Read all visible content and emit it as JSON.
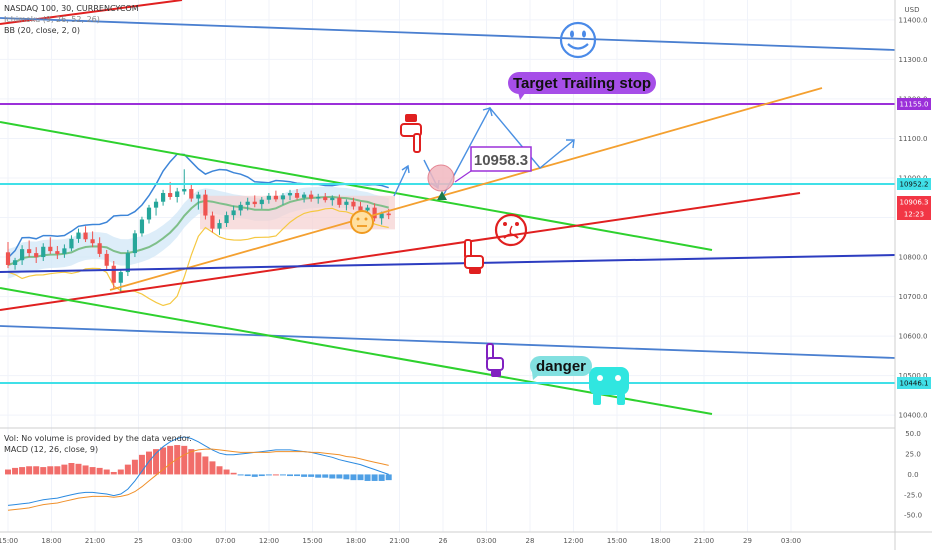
{
  "header": {
    "symbol_line": "NASDAQ 100, 30, CURRENCYCOM",
    "ind1": "Ichimoku (9, 26, 52, 26)",
    "ind2": "BB (20, close, 2, 0)",
    "currency": "USD"
  },
  "lower_panel": {
    "vol_note": "Vol: No volume is provided by the data vendor.",
    "macd_label": "MACD (12, 26, close, 9)"
  },
  "annotations": {
    "target": "Target Trailing stop",
    "price_box": "10958.3",
    "danger": "danger"
  },
  "price_tags": [
    {
      "value": "11155.0",
      "color": "#9b30d9"
    },
    {
      "value": "10952.2",
      "color": "#40e0e8"
    },
    {
      "value": "10906.3",
      "color": "#f23645"
    },
    {
      "value": "12:23",
      "color": "#f23645"
    },
    {
      "value": "10446.1",
      "color": "#40e0e8"
    }
  ],
  "icons": [
    "smiley-face-icon",
    "sad-face-icon",
    "neutral-face-icon",
    "robot-face-icon",
    "hand-pointing-down-icon",
    "hand-pointing-up-icon"
  ],
  "chart_data": {
    "type": "candlestick",
    "title": "",
    "y_axis": {
      "ticks": [
        "11400.0",
        "11300.0",
        "11200.0",
        "11100.0",
        "11000.0",
        "10900.0",
        "10800.0",
        "10700.0",
        "10600.0",
        "10500.0",
        "10400.0"
      ],
      "range": [
        10360,
        11430
      ]
    },
    "x_axis": {
      "ticks": [
        "15:00",
        "18:00",
        "21:00",
        "25",
        "03:00",
        "07:00",
        "12:00",
        "15:00",
        "18:00",
        "21:00",
        "26",
        "03:00",
        "28",
        "12:00",
        "15:00",
        "18:00",
        "21:00",
        "29",
        "03:00"
      ]
    },
    "macd_axis": {
      "ticks": [
        "50.0",
        "25.0",
        "0.0",
        "-25.0",
        "-50.0"
      ],
      "range": [
        -62,
        52
      ]
    },
    "candles": [
      [
        10812,
        10838,
        10772,
        10780
      ],
      [
        10780,
        10798,
        10768,
        10792
      ],
      [
        10792,
        10830,
        10780,
        10820
      ],
      [
        10820,
        10842,
        10800,
        10810
      ],
      [
        10810,
        10825,
        10785,
        10800
      ],
      [
        10800,
        10835,
        10790,
        10826
      ],
      [
        10826,
        10850,
        10808,
        10815
      ],
      [
        10815,
        10828,
        10795,
        10808
      ],
      [
        10808,
        10832,
        10798,
        10822
      ],
      [
        10822,
        10855,
        10815,
        10846
      ],
      [
        10846,
        10872,
        10836,
        10862
      ],
      [
        10862,
        10878,
        10838,
        10845
      ],
      [
        10845,
        10865,
        10825,
        10835
      ],
      [
        10835,
        10850,
        10800,
        10808
      ],
      [
        10808,
        10818,
        10770,
        10778
      ],
      [
        10778,
        10790,
        10718,
        10735
      ],
      [
        10735,
        10768,
        10712,
        10762
      ],
      [
        10762,
        10818,
        10752,
        10810
      ],
      [
        10810,
        10868,
        10800,
        10860
      ],
      [
        10860,
        10902,
        10852,
        10895
      ],
      [
        10895,
        10932,
        10885,
        10925
      ],
      [
        10925,
        10948,
        10905,
        10940
      ],
      [
        10940,
        10970,
        10930,
        10962
      ],
      [
        10962,
        10990,
        10945,
        10952
      ],
      [
        10952,
        10975,
        10938,
        10966
      ],
      [
        10966,
        11022,
        10958,
        10972
      ],
      [
        10972,
        10985,
        10940,
        10948
      ],
      [
        10948,
        10965,
        10920,
        10958
      ],
      [
        10958,
        10970,
        10895,
        10905
      ],
      [
        10905,
        10915,
        10862,
        10872
      ],
      [
        10872,
        10895,
        10856,
        10886
      ],
      [
        10886,
        10915,
        10876,
        10906
      ],
      [
        10906,
        10930,
        10894,
        10918
      ],
      [
        10918,
        10940,
        10905,
        10932
      ],
      [
        10932,
        10950,
        10918,
        10940
      ],
      [
        10940,
        10956,
        10926,
        10934
      ],
      [
        10934,
        10952,
        10922,
        10945
      ],
      [
        10945,
        10962,
        10935,
        10955
      ],
      [
        10955,
        10968,
        10940,
        10946
      ],
      [
        10946,
        10962,
        10932,
        10956
      ],
      [
        10956,
        10970,
        10944,
        10962
      ],
      [
        10962,
        10972,
        10945,
        10950
      ],
      [
        10950,
        10964,
        10938,
        10958
      ],
      [
        10958,
        10968,
        10940,
        10948
      ],
      [
        10948,
        10960,
        10935,
        10952
      ],
      [
        10952,
        10962,
        10938,
        10944
      ],
      [
        10944,
        10956,
        10930,
        10950
      ],
      [
        10950,
        10958,
        10925,
        10932
      ],
      [
        10932,
        10946,
        10918,
        10940
      ],
      [
        10940,
        10950,
        10920,
        10928
      ],
      [
        10928,
        10940,
        10905,
        10918
      ],
      [
        10918,
        10932,
        10900,
        10925
      ],
      [
        10925,
        10936,
        10890,
        10898
      ],
      [
        10898,
        10915,
        10882,
        10910
      ],
      [
        10910,
        10922,
        10896,
        10906
      ]
    ],
    "macd_hist": [
      6,
      8,
      9,
      10,
      10,
      9,
      10,
      10,
      12,
      14,
      13,
      11,
      9,
      8,
      6,
      3,
      6,
      12,
      18,
      24,
      28,
      31,
      33,
      35,
      36,
      35,
      31,
      27,
      22,
      16,
      10,
      6,
      2,
      -1,
      -2,
      -3,
      -2,
      -1,
      0,
      -1,
      -2,
      -2,
      -3,
      -3,
      -4,
      -4,
      -5,
      -5,
      -6,
      -7,
      -7,
      -8,
      -8,
      -8,
      -7
    ],
    "macd_line": [
      -38,
      -37,
      -36,
      -35,
      -33,
      -31,
      -30,
      -29,
      -27,
      -25,
      -23,
      -22,
      -22,
      -23,
      -24,
      -26,
      -24,
      -18,
      -8,
      4,
      16,
      26,
      34,
      40,
      44,
      46,
      44,
      40,
      35,
      30,
      26,
      24,
      24,
      25,
      26,
      27,
      28,
      29,
      30,
      30,
      30,
      29,
      28,
      27,
      25,
      23,
      21,
      18,
      16,
      14,
      12,
      9,
      6,
      3,
      0
    ],
    "signal_line": [
      -44,
      -43,
      -42,
      -41,
      -39,
      -37,
      -36,
      -35,
      -33,
      -31,
      -29,
      -28,
      -27,
      -27,
      -27,
      -28,
      -27,
      -25,
      -21,
      -15,
      -8,
      -1,
      6,
      13,
      19,
      24,
      28,
      30,
      31,
      31,
      30,
      29,
      28,
      27,
      27,
      27,
      27,
      27,
      28,
      28,
      28,
      28,
      28,
      27,
      27,
      26,
      25,
      24,
      22,
      21,
      19,
      17,
      15,
      13,
      11
    ]
  }
}
